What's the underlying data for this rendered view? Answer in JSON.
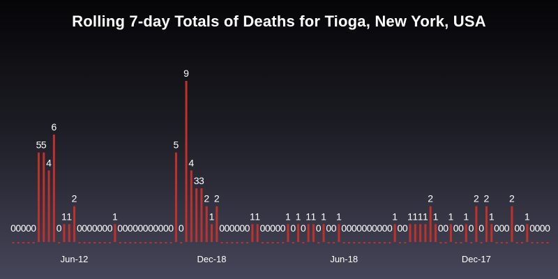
{
  "chart_data": {
    "type": "bar",
    "title": "Rolling 7-day Totals of Deaths for Tioga, New York, USA",
    "xlabel": "",
    "ylabel": "",
    "ylim": [
      0,
      10
    ],
    "grid": false,
    "legend": "none",
    "bar_color": "#c0312b",
    "tick_labels": [
      {
        "label": "Jun-12",
        "index": 12
      },
      {
        "label": "Dec-18",
        "index": 39
      },
      {
        "label": "Jun-18",
        "index": 65
      },
      {
        "label": "Dec-17",
        "index": 91
      }
    ],
    "values": [
      0,
      0,
      0,
      0,
      0,
      5,
      5,
      4,
      6,
      0,
      1,
      1,
      2,
      0,
      0,
      0,
      0,
      0,
      0,
      0,
      1,
      0,
      0,
      0,
      0,
      0,
      0,
      0,
      0,
      0,
      0,
      0,
      5,
      0,
      9,
      4,
      3,
      3,
      2,
      1,
      2,
      0,
      0,
      0,
      0,
      0,
      0,
      1,
      1,
      0,
      0,
      0,
      0,
      0,
      1,
      0,
      1,
      0,
      1,
      1,
      0,
      1,
      0,
      0,
      1,
      0,
      0,
      0,
      0,
      0,
      0,
      0,
      0,
      0,
      0,
      1,
      0,
      0,
      1,
      1,
      1,
      1,
      2,
      1,
      0,
      0,
      1,
      0,
      0,
      1,
      0,
      2,
      0,
      2,
      1,
      0,
      0,
      0,
      2,
      0,
      0,
      1,
      0,
      0,
      0,
      0
    ]
  }
}
